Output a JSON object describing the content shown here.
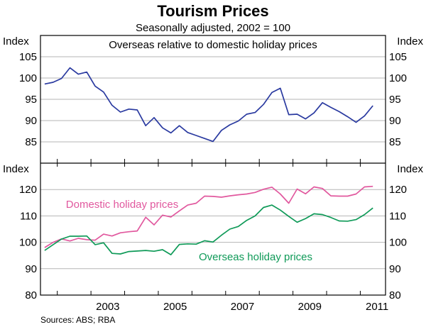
{
  "chart_data": {
    "type": "line",
    "title": "Tourism Prices",
    "subtitle": "Seasonally adjusted, 2002 = 100",
    "source": "Sources: ABS; RBA",
    "x_tick_labels": [
      "2003",
      "2005",
      "2007",
      "2009",
      "2011"
    ],
    "x_range": [
      2001.5,
      2011.75
    ],
    "panels": [
      {
        "y_label_left": "Index",
        "y_label_right": "Index",
        "ylim": [
          80,
          110
        ],
        "y_ticks": [
          85,
          90,
          95,
          100,
          105
        ],
        "grid_y": true,
        "series": [
          {
            "name": "Overseas relative to domestic holiday prices",
            "color": "#2a3aa0",
            "x": [
              2001.625,
              2001.875,
              2002.125,
              2002.375,
              2002.625,
              2002.875,
              2003.125,
              2003.375,
              2003.625,
              2003.875,
              2004.125,
              2004.375,
              2004.625,
              2004.875,
              2005.125,
              2005.375,
              2005.625,
              2005.875,
              2006.125,
              2006.375,
              2006.625,
              2006.875,
              2007.125,
              2007.375,
              2007.625,
              2007.875,
              2008.125,
              2008.375,
              2008.625,
              2008.875,
              2009.125,
              2009.375,
              2009.625,
              2009.875,
              2010.125,
              2010.375,
              2010.625,
              2010.875,
              2011.125,
              2011.375
            ],
            "values": [
              98.6,
              99.0,
              99.9,
              102.4,
              100.9,
              101.4,
              98.1,
              96.7,
              93.6,
              92.0,
              92.7,
              92.5,
              88.8,
              90.7,
              88.3,
              87.1,
              88.8,
              87.2,
              86.5,
              85.8,
              85.1,
              87.7,
              89.0,
              89.9,
              91.5,
              91.9,
              93.8,
              96.6,
              97.6,
              91.4,
              91.5,
              90.4,
              91.8,
              94.2,
              93.1,
              92.1,
              90.9,
              89.6,
              91.1,
              93.5
            ]
          }
        ]
      },
      {
        "y_label_left": "Index",
        "y_label_right": "Index",
        "ylim": [
          80,
          130
        ],
        "y_ticks": [
          80,
          90,
          100,
          110,
          120
        ],
        "grid_y": true,
        "series": [
          {
            "name": "Domestic holiday prices",
            "color": "#e1589e",
            "x": [
              2001.625,
              2001.875,
              2002.125,
              2002.375,
              2002.625,
              2002.875,
              2003.125,
              2003.375,
              2003.625,
              2003.875,
              2004.125,
              2004.375,
              2004.625,
              2004.875,
              2005.125,
              2005.375,
              2005.625,
              2005.875,
              2006.125,
              2006.375,
              2006.625,
              2006.875,
              2007.125,
              2007.375,
              2007.625,
              2007.875,
              2008.125,
              2008.375,
              2008.625,
              2008.875,
              2009.125,
              2009.375,
              2009.625,
              2009.875,
              2010.125,
              2010.375,
              2010.625,
              2010.875,
              2011.125,
              2011.375
            ],
            "values": [
              98.0,
              100.0,
              101.3,
              100.5,
              101.5,
              101.0,
              100.8,
              103.1,
              102.4,
              103.6,
              104.0,
              104.3,
              109.5,
              106.6,
              110.3,
              109.6,
              111.9,
              114.1,
              114.8,
              117.5,
              117.4,
              117.1,
              117.6,
              118.0,
              118.3,
              118.9,
              120.1,
              120.9,
              118.3,
              114.8,
              120.2,
              118.4,
              121.0,
              120.4,
              117.6,
              117.5,
              117.5,
              118.3,
              121.0,
              121.2
            ]
          },
          {
            "name": "Overseas holiday prices",
            "color": "#0f9a58",
            "x": [
              2001.625,
              2001.875,
              2002.125,
              2002.375,
              2002.625,
              2002.875,
              2003.125,
              2003.375,
              2003.625,
              2003.875,
              2004.125,
              2004.375,
              2004.625,
              2004.875,
              2005.125,
              2005.375,
              2005.625,
              2005.875,
              2006.125,
              2006.375,
              2006.625,
              2006.875,
              2007.125,
              2007.375,
              2007.625,
              2007.875,
              2008.125,
              2008.375,
              2008.625,
              2008.875,
              2009.125,
              2009.375,
              2009.625,
              2009.875,
              2010.125,
              2010.375,
              2010.625,
              2010.875,
              2011.125,
              2011.375
            ],
            "values": [
              96.9,
              99.1,
              101.2,
              102.3,
              102.3,
              102.4,
              99.1,
              99.8,
              95.8,
              95.6,
              96.5,
              96.7,
              96.9,
              96.6,
              97.2,
              95.3,
              99.2,
              99.4,
              99.3,
              100.6,
              100.1,
              102.7,
              105.0,
              106.0,
              108.3,
              110.0,
              113.2,
              114.1,
              112.2,
              109.8,
              107.6,
              109.0,
              110.8,
              110.5,
              109.4,
              108.1,
              108.0,
              108.6,
              110.5,
              113.0
            ]
          }
        ]
      }
    ]
  }
}
